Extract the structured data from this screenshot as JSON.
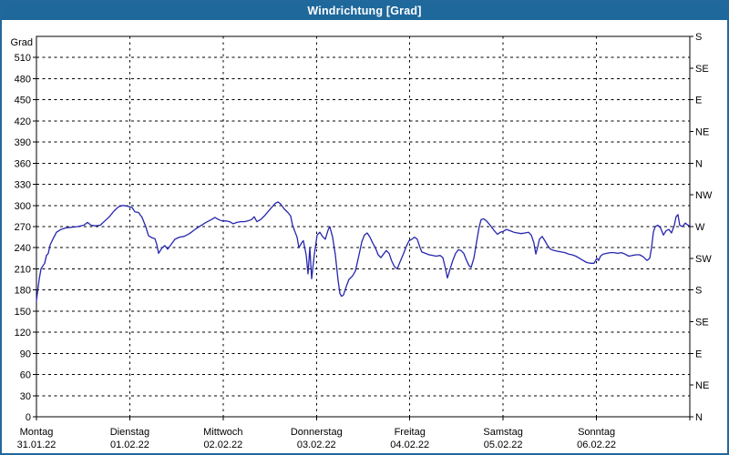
{
  "window": {
    "title": "Windrichtung [Grad]"
  },
  "colors": {
    "titlebar_bg": "#1e689c",
    "titlebar_text": "#ffffff",
    "window_border": "#22689c",
    "plot_bg": "#ffffff",
    "axis": "#000000",
    "grid": "#000000",
    "line": "#2626ae"
  },
  "chart_data": {
    "type": "line",
    "title": "Windrichtung [Grad]",
    "ylabel": "Grad",
    "ylim": [
      0,
      540
    ],
    "grid": true,
    "y_left_ticks": [
      0,
      30,
      60,
      90,
      120,
      150,
      180,
      210,
      240,
      270,
      300,
      330,
      360,
      390,
      420,
      450,
      480,
      510
    ],
    "y_right_ticks": [
      {
        "value": 0,
        "label": "N"
      },
      {
        "value": 45,
        "label": "NE"
      },
      {
        "value": 90,
        "label": "E"
      },
      {
        "value": 135,
        "label": "SE"
      },
      {
        "value": 180,
        "label": "S"
      },
      {
        "value": 225,
        "label": "SW"
      },
      {
        "value": 270,
        "label": "W"
      },
      {
        "value": 315,
        "label": "NW"
      },
      {
        "value": 360,
        "label": "N"
      },
      {
        "value": 405,
        "label": "NE"
      },
      {
        "value": 450,
        "label": "E"
      },
      {
        "value": 495,
        "label": "SE"
      },
      {
        "value": 540,
        "label": "S"
      }
    ],
    "x_days": [
      {
        "name": "Montag",
        "date": "31.01.22"
      },
      {
        "name": "Dienstag",
        "date": "01.02.22"
      },
      {
        "name": "Mittwoch",
        "date": "02.02.22"
      },
      {
        "name": "Donnerstag",
        "date": "03.02.22"
      },
      {
        "name": "Freitag",
        "date": "04.02.22"
      },
      {
        "name": "Samstag",
        "date": "05.02.22"
      },
      {
        "name": "Sonntag",
        "date": "06.02.22"
      }
    ],
    "xlim_days": [
      0,
      7
    ],
    "series": [
      {
        "name": "Windrichtung",
        "unit": "Grad",
        "points": [
          [
            0.0,
            165
          ],
          [
            0.01,
            175
          ],
          [
            0.029,
            195
          ],
          [
            0.049,
            210
          ],
          [
            0.068,
            214
          ],
          [
            0.088,
            218
          ],
          [
            0.107,
            229
          ],
          [
            0.127,
            232
          ],
          [
            0.146,
            244
          ],
          [
            0.176,
            252
          ],
          [
            0.215,
            262
          ],
          [
            0.264,
            266
          ],
          [
            0.312,
            268
          ],
          [
            0.371,
            269
          ],
          [
            0.439,
            270
          ],
          [
            0.508,
            272
          ],
          [
            0.547,
            276
          ],
          [
            0.586,
            272
          ],
          [
            0.635,
            271
          ],
          [
            0.683,
            272
          ],
          [
            0.732,
            278
          ],
          [
            0.781,
            284
          ],
          [
            0.83,
            292
          ],
          [
            0.879,
            298
          ],
          [
            0.927,
            300
          ],
          [
            0.976,
            299
          ],
          [
            1.025,
            297
          ],
          [
            1.054,
            291
          ],
          [
            1.093,
            290
          ],
          [
            1.132,
            283
          ],
          [
            1.171,
            270
          ],
          [
            1.201,
            257
          ],
          [
            1.24,
            254
          ],
          [
            1.269,
            253
          ],
          [
            1.289,
            245
          ],
          [
            1.308,
            232
          ],
          [
            1.347,
            240
          ],
          [
            1.376,
            243
          ],
          [
            1.406,
            238
          ],
          [
            1.445,
            245
          ],
          [
            1.484,
            252
          ],
          [
            1.533,
            255
          ],
          [
            1.581,
            256
          ],
          [
            1.64,
            260
          ],
          [
            1.699,
            266
          ],
          [
            1.757,
            271
          ],
          [
            1.816,
            276
          ],
          [
            1.874,
            280
          ],
          [
            1.913,
            283
          ],
          [
            1.952,
            280
          ],
          [
            1.991,
            278
          ],
          [
            2.031,
            278
          ],
          [
            2.07,
            277
          ],
          [
            2.109,
            274
          ],
          [
            2.148,
            276
          ],
          [
            2.187,
            277
          ],
          [
            2.226,
            277
          ],
          [
            2.265,
            278
          ],
          [
            2.304,
            280
          ],
          [
            2.333,
            284
          ],
          [
            2.362,
            277
          ],
          [
            2.402,
            280
          ],
          [
            2.441,
            285
          ],
          [
            2.48,
            291
          ],
          [
            2.519,
            297
          ],
          [
            2.558,
            303
          ],
          [
            2.587,
            305
          ],
          [
            2.616,
            302
          ],
          [
            2.655,
            295
          ],
          [
            2.694,
            290
          ],
          [
            2.724,
            285
          ],
          [
            2.743,
            272
          ],
          [
            2.772,
            262
          ],
          [
            2.792,
            255
          ],
          [
            2.812,
            240
          ],
          [
            2.841,
            247
          ],
          [
            2.86,
            250
          ],
          [
            2.89,
            230
          ],
          [
            2.909,
            203
          ],
          [
            2.929,
            240
          ],
          [
            2.948,
            196
          ],
          [
            2.977,
            230
          ],
          [
            3.007,
            258
          ],
          [
            3.036,
            262
          ],
          [
            3.065,
            256
          ],
          [
            3.095,
            252
          ],
          [
            3.124,
            265
          ],
          [
            3.143,
            270
          ],
          [
            3.173,
            255
          ],
          [
            3.202,
            230
          ],
          [
            3.231,
            195
          ],
          [
            3.251,
            175
          ],
          [
            3.27,
            171
          ],
          [
            3.29,
            173
          ],
          [
            3.319,
            185
          ],
          [
            3.348,
            195
          ],
          [
            3.387,
            200
          ],
          [
            3.417,
            207
          ],
          [
            3.456,
            230
          ],
          [
            3.485,
            248
          ],
          [
            3.514,
            258
          ],
          [
            3.544,
            261
          ],
          [
            3.573,
            255
          ],
          [
            3.602,
            247
          ],
          [
            3.631,
            240
          ],
          [
            3.661,
            230
          ],
          [
            3.69,
            226
          ],
          [
            3.719,
            231
          ],
          [
            3.748,
            236
          ],
          [
            3.778,
            232
          ],
          [
            3.807,
            221
          ],
          [
            3.836,
            213
          ],
          [
            3.866,
            210
          ],
          [
            3.895,
            220
          ],
          [
            3.934,
            232
          ],
          [
            3.963,
            242
          ],
          [
            3.992,
            250
          ],
          [
            4.022,
            252
          ],
          [
            4.051,
            255
          ],
          [
            4.08,
            252
          ],
          [
            4.11,
            240
          ],
          [
            4.129,
            234
          ],
          [
            4.168,
            232
          ],
          [
            4.207,
            230
          ],
          [
            4.246,
            229
          ],
          [
            4.285,
            228
          ],
          [
            4.325,
            229
          ],
          [
            4.354,
            226
          ],
          [
            4.383,
            210
          ],
          [
            4.403,
            197
          ],
          [
            4.432,
            210
          ],
          [
            4.461,
            222
          ],
          [
            4.491,
            232
          ],
          [
            4.52,
            237
          ],
          [
            4.549,
            236
          ],
          [
            4.578,
            232
          ],
          [
            4.608,
            222
          ],
          [
            4.637,
            214
          ],
          [
            4.657,
            212
          ],
          [
            4.686,
            225
          ],
          [
            4.715,
            248
          ],
          [
            4.744,
            270
          ],
          [
            4.764,
            280
          ],
          [
            4.793,
            281
          ],
          [
            4.822,
            278
          ],
          [
            4.861,
            272
          ],
          [
            4.9,
            265
          ],
          [
            4.939,
            259
          ],
          [
            4.969,
            262
          ],
          [
            4.998,
            263
          ],
          [
            5.037,
            266
          ],
          [
            5.076,
            264
          ],
          [
            5.115,
            262
          ],
          [
            5.154,
            261
          ],
          [
            5.193,
            260
          ],
          [
            5.233,
            261
          ],
          [
            5.272,
            262
          ],
          [
            5.301,
            258
          ],
          [
            5.33,
            247
          ],
          [
            5.35,
            231
          ],
          [
            5.369,
            240
          ],
          [
            5.389,
            252
          ],
          [
            5.418,
            256
          ],
          [
            5.447,
            250
          ],
          [
            5.477,
            243
          ],
          [
            5.506,
            238
          ],
          [
            5.545,
            236
          ],
          [
            5.584,
            235
          ],
          [
            5.623,
            234
          ],
          [
            5.662,
            233
          ],
          [
            5.701,
            231
          ],
          [
            5.74,
            230
          ],
          [
            5.779,
            228
          ],
          [
            5.818,
            225
          ],
          [
            5.857,
            222
          ],
          [
            5.896,
            219
          ],
          [
            5.935,
            218
          ],
          [
            5.974,
            218
          ],
          [
            6.004,
            225
          ],
          [
            6.023,
            222
          ],
          [
            6.043,
            228
          ],
          [
            6.072,
            231
          ],
          [
            6.111,
            232
          ],
          [
            6.15,
            233
          ],
          [
            6.189,
            233
          ],
          [
            6.228,
            232
          ],
          [
            6.267,
            233
          ],
          [
            6.306,
            231
          ],
          [
            6.346,
            228
          ],
          [
            6.385,
            229
          ],
          [
            6.424,
            230
          ],
          [
            6.463,
            230
          ],
          [
            6.502,
            227
          ],
          [
            6.541,
            222
          ],
          [
            6.57,
            225
          ],
          [
            6.59,
            240
          ],
          [
            6.609,
            262
          ],
          [
            6.629,
            270
          ],
          [
            6.658,
            272
          ],
          [
            6.687,
            268
          ],
          [
            6.717,
            258
          ],
          [
            6.746,
            264
          ],
          [
            6.775,
            266
          ],
          [
            6.804,
            261
          ],
          [
            6.834,
            272
          ],
          [
            6.853,
            284
          ],
          [
            6.873,
            287
          ],
          [
            6.892,
            272
          ],
          [
            6.921,
            270
          ],
          [
            6.951,
            275
          ],
          [
            6.98,
            272
          ],
          [
            7.0,
            271
          ]
        ]
      }
    ]
  }
}
